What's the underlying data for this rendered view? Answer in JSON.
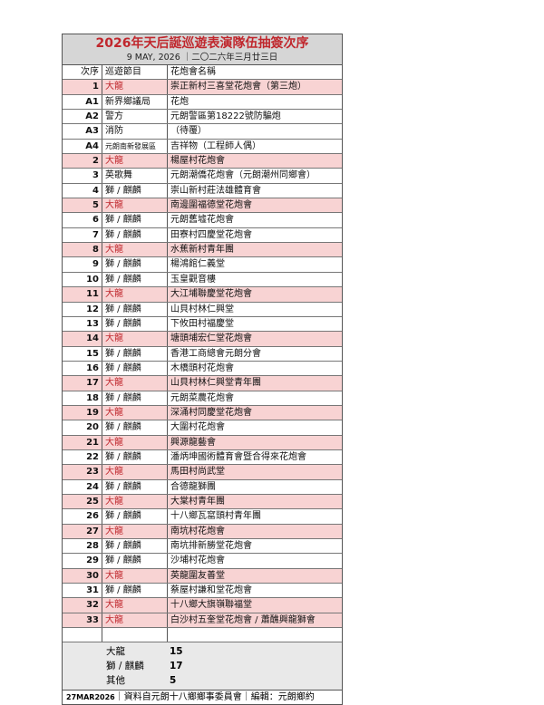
{
  "title": "2026年天后誕巡遊表演隊伍抽簽次序",
  "subtitle": "9 MAY, 2026 ｜二〇二六年三月廿三日",
  "headers": [
    "次序",
    "巡遊節目",
    "花炮會名稱"
  ],
  "colors": {
    "title": "#c0272d",
    "highlight_row": "#f8d3d3",
    "header_bg": "#d6d6d6"
  },
  "rows": [
    {
      "no": "1",
      "type": "大龍",
      "name": "崇正新村三喜堂花炮會（第三炮）",
      "highlight": true
    },
    {
      "no": "A1",
      "type": "新界鄉議局",
      "name": "花炮"
    },
    {
      "no": "A2",
      "type": "警方",
      "name": "元朗警區第18222號防騙炮"
    },
    {
      "no": "A3",
      "type": "消防",
      "name": "（待覆）"
    },
    {
      "no": "A4",
      "type": "元朗南新發展區",
      "name": "吉祥物（工程師人偶）",
      "small": true
    },
    {
      "no": "2",
      "type": "大龍",
      "name": "楊屋村花炮會",
      "highlight": true
    },
    {
      "no": "3",
      "type": "英歌舞",
      "name": "元朗潮僑花炮會（元朗潮州同鄉會）"
    },
    {
      "no": "4",
      "type": "獅 / 麒麟",
      "name": "崇山新村莊法雄體育會"
    },
    {
      "no": "5",
      "type": "大龍",
      "name": "南邊圍福德堂花炮會",
      "highlight": true
    },
    {
      "no": "6",
      "type": "獅 / 麒麟",
      "name": "元朗舊墟花炮會"
    },
    {
      "no": "7",
      "type": "獅 / 麒麟",
      "name": "田寮村四慶堂花炮會"
    },
    {
      "no": "8",
      "type": "大龍",
      "name": "水蕉新村青年團",
      "highlight": true
    },
    {
      "no": "9",
      "type": "獅 / 麒麟",
      "name": "楊鴻館仁義堂"
    },
    {
      "no": "10",
      "type": "獅 / 麒麟",
      "name": "玉皇觀音樓"
    },
    {
      "no": "11",
      "type": "大龍",
      "name": "大江埔聯慶堂花炮會",
      "highlight": true
    },
    {
      "no": "12",
      "type": "獅 / 麒麟",
      "name": "山貝村林仁興堂"
    },
    {
      "no": "13",
      "type": "獅 / 麒麟",
      "name": "下攸田村福慶堂"
    },
    {
      "no": "14",
      "type": "大龍",
      "name": "塘頭埔宏仁堂花炮會",
      "highlight": true
    },
    {
      "no": "15",
      "type": "獅 / 麒麟",
      "name": "香港工商總會元朗分會"
    },
    {
      "no": "16",
      "type": "獅 / 麒麟",
      "name": "木橋頭村花炮會"
    },
    {
      "no": "17",
      "type": "大龍",
      "name": "山貝村林仁興堂青年團",
      "highlight": true
    },
    {
      "no": "18",
      "type": "獅 / 麒麟",
      "name": "元朗菜農花炮會"
    },
    {
      "no": "19",
      "type": "大龍",
      "name": "深涌村同慶堂花炮會",
      "highlight": true
    },
    {
      "no": "20",
      "type": "獅 / 麒麟",
      "name": "大圍村花炮會"
    },
    {
      "no": "21",
      "type": "大龍",
      "name": "興源龍藝會",
      "highlight": true
    },
    {
      "no": "22",
      "type": "獅 / 麒麟",
      "name": "潘炳坤國術體育會暨合得來花炮會"
    },
    {
      "no": "23",
      "type": "大龍",
      "name": "馬田村尚武堂",
      "highlight": true
    },
    {
      "no": "24",
      "type": "獅 / 麒麟",
      "name": "合德龍獅團"
    },
    {
      "no": "25",
      "type": "大龍",
      "name": "大棠村青年團",
      "highlight": true
    },
    {
      "no": "26",
      "type": "獅 / 麒麟",
      "name": "十八鄉瓦窰頭村青年團"
    },
    {
      "no": "27",
      "type": "大龍",
      "name": "南坑村花炮會",
      "highlight": true
    },
    {
      "no": "28",
      "type": "獅 / 麒麟",
      "name": "南坑排新勝堂花炮會"
    },
    {
      "no": "29",
      "type": "獅 / 麒麟",
      "name": "沙埔村花炮會"
    },
    {
      "no": "30",
      "type": "大龍",
      "name": "英龍圍友善堂",
      "highlight": true
    },
    {
      "no": "31",
      "type": "獅 / 麒麟",
      "name": "蔡屋村謙和堂花炮會"
    },
    {
      "no": "32",
      "type": "大龍",
      "name": "十八鄉大旗嶺聯福堂",
      "highlight": true
    },
    {
      "no": "33",
      "type": "大龍",
      "name": "白沙村五奎堂花炮會 / 蕭醮興龍獅會",
      "highlight": true
    }
  ],
  "summary": [
    {
      "label": "大龍",
      "value": "15"
    },
    {
      "label": "獅 / 麒麟",
      "value": "17"
    },
    {
      "label": "其他",
      "value": "5"
    }
  ],
  "footer": {
    "date": "27MAR2026",
    "text": "｜資料自元朗十八鄉鄉事委員會｜編輯：元朗鄉約"
  }
}
